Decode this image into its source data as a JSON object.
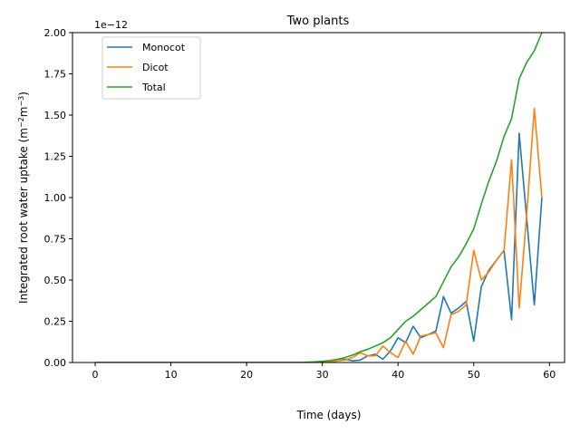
{
  "chart_data": {
    "type": "line",
    "title": "Two plants",
    "xlabel": "Time (days)",
    "ylabel_main": "Integrated root water uptake (m",
    "ylabel_sup1": "−2",
    "ylabel_mid": "m",
    "ylabel_sup2": "−3",
    "ylabel_end": ")",
    "y_offset_label": "1e−12",
    "xlim": [
      -3,
      62
    ],
    "ylim": [
      0,
      2.0
    ],
    "xticks": [
      0,
      10,
      20,
      30,
      40,
      50,
      60
    ],
    "yticks": [
      0.0,
      0.25,
      0.5,
      0.75,
      1.0,
      1.25,
      1.5,
      1.75,
      2.0
    ],
    "ytick_labels": [
      "0.00",
      "0.25",
      "0.50",
      "0.75",
      "1.00",
      "1.25",
      "1.50",
      "1.75",
      "2.00"
    ],
    "legend_position": "top-left",
    "grid": false,
    "x": [
      0,
      1,
      2,
      3,
      4,
      5,
      6,
      7,
      8,
      9,
      10,
      11,
      12,
      13,
      14,
      15,
      16,
      17,
      18,
      19,
      20,
      21,
      22,
      23,
      24,
      25,
      26,
      27,
      28,
      29,
      30,
      31,
      32,
      33,
      34,
      35,
      36,
      37,
      38,
      39,
      40,
      41,
      42,
      43,
      44,
      45,
      46,
      47,
      48,
      49,
      50,
      51,
      52,
      53,
      54,
      55,
      56,
      57,
      58,
      59
    ],
    "series": [
      {
        "name": "Monocot",
        "color": "#1f77b4",
        "values": [
          0,
          0,
          0,
          0,
          0,
          0,
          0,
          0,
          0,
          0,
          0,
          0,
          0,
          0,
          0,
          0,
          0,
          0,
          0,
          0,
          0,
          0,
          0,
          0,
          0,
          0,
          0,
          0,
          0,
          0,
          0.003,
          0.005,
          0.01,
          0.02,
          0.01,
          0.015,
          0.04,
          0.05,
          0.02,
          0.07,
          0.15,
          0.12,
          0.22,
          0.15,
          0.17,
          0.19,
          0.4,
          0.3,
          0.33,
          0.37,
          0.13,
          0.46,
          0.56,
          0.62,
          0.68,
          0.26,
          1.39,
          0.87,
          0.35,
          1.0
        ]
      },
      {
        "name": "Dicot",
        "color": "#ff7f0e",
        "values": [
          0,
          0,
          0,
          0,
          0,
          0,
          0,
          0,
          0,
          0,
          0,
          0,
          0,
          0,
          0,
          0,
          0,
          0,
          0,
          0,
          0,
          0,
          0,
          0,
          0,
          0,
          0,
          0,
          0,
          0,
          0.003,
          0.005,
          0.01,
          0.015,
          0.03,
          0.06,
          0.04,
          0.04,
          0.1,
          0.06,
          0.03,
          0.13,
          0.05,
          0.16,
          0.17,
          0.18,
          0.09,
          0.29,
          0.31,
          0.35,
          0.68,
          0.5,
          0.55,
          0.62,
          0.68,
          1.23,
          0.33,
          0.9,
          1.54,
          1.0
        ]
      },
      {
        "name": "Total",
        "color": "#2ca02c",
        "values": [
          0,
          0,
          0,
          0,
          0,
          0,
          0,
          0,
          0,
          0,
          0,
          0,
          0,
          0,
          0,
          0,
          0,
          0,
          0,
          0,
          0,
          0,
          0,
          0,
          0,
          0,
          0,
          0,
          0.002,
          0.004,
          0.007,
          0.012,
          0.02,
          0.03,
          0.045,
          0.065,
          0.08,
          0.1,
          0.12,
          0.15,
          0.2,
          0.25,
          0.28,
          0.32,
          0.36,
          0.4,
          0.49,
          0.58,
          0.64,
          0.72,
          0.81,
          0.96,
          1.1,
          1.22,
          1.37,
          1.48,
          1.72,
          1.82,
          1.89,
          2.0
        ]
      }
    ]
  }
}
